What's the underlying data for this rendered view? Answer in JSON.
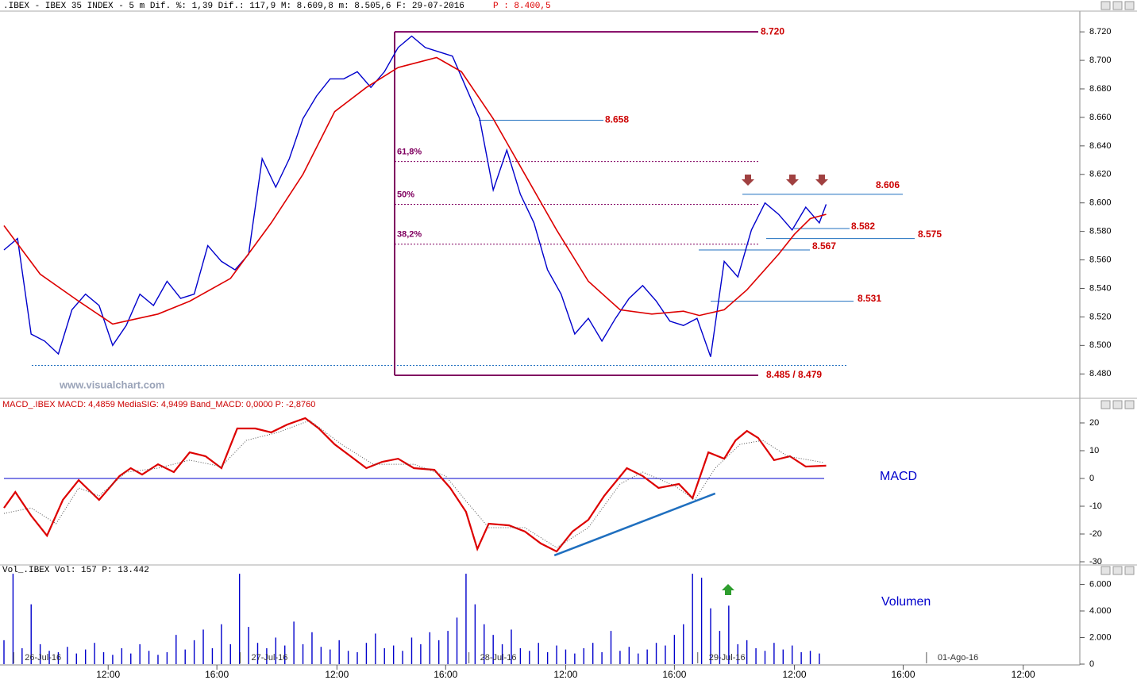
{
  "chart_data": [
    {
      "type": "line",
      "header": ".IBEX - IBEX 35 INDEX -  5 m Dif. %: 1,39 Dif.: 117,9 M: 8.609,8 m: 8.505,6 F: 29-07-2016",
      "header_last": "P : 8.400,5",
      "watermark": "www.visualchart.com",
      "xlim": [
        0,
        475
      ],
      "ylim": [
        8.464,
        8.734
      ],
      "yticks": [
        {
          "value": 8.48,
          "label": "8.480"
        },
        {
          "value": 8.5,
          "label": "8.500"
        },
        {
          "value": 8.52,
          "label": "8.520"
        },
        {
          "value": 8.54,
          "label": "8.540"
        },
        {
          "value": 8.56,
          "label": "8.560"
        },
        {
          "value": 8.58,
          "label": "8.580"
        },
        {
          "value": 8.6,
          "label": "8.600"
        },
        {
          "value": 8.62,
          "label": "8.620"
        },
        {
          "value": 8.64,
          "label": "8.640"
        },
        {
          "value": 8.66,
          "label": "8.660"
        },
        {
          "value": 8.68,
          "label": "8.680"
        },
        {
          "value": 8.7,
          "label": "8.700"
        },
        {
          "value": 8.72,
          "label": "8.720"
        }
      ],
      "series": [
        {
          "color": "#0000cc",
          "x": [
            0,
            6,
            12,
            18,
            24,
            30,
            36,
            42,
            48,
            54,
            60,
            66,
            72,
            78,
            84,
            90,
            96,
            102,
            108,
            114,
            120,
            126,
            132,
            138,
            144,
            150,
            156,
            162,
            168,
            174,
            180,
            186,
            192,
            198,
            204,
            210,
            216,
            222,
            228,
            234,
            240,
            246,
            252,
            258,
            264,
            270,
            276,
            282,
            288,
            294,
            300,
            306,
            312,
            318,
            324,
            330,
            336,
            342,
            348,
            354,
            360,
            363
          ],
          "values": [
            8.567,
            8.575,
            8.508,
            8.503,
            8.494,
            8.525,
            8.536,
            8.528,
            8.5,
            8.514,
            8.536,
            8.528,
            8.545,
            8.533,
            8.536,
            8.57,
            8.559,
            8.553,
            8.564,
            8.631,
            8.611,
            8.631,
            8.659,
            8.675,
            8.687,
            8.687,
            8.692,
            8.681,
            8.692,
            8.709,
            8.717,
            8.709,
            8.706,
            8.703,
            8.681,
            8.659,
            8.609,
            8.637,
            8.606,
            8.586,
            8.553,
            8.536,
            8.508,
            8.519,
            8.503,
            8.519,
            8.533,
            8.542,
            8.531,
            8.517,
            8.514,
            8.519,
            8.492,
            8.559,
            8.548,
            8.581,
            8.6,
            8.592,
            8.581,
            8.597,
            8.586,
            8.599
          ]
        },
        {
          "color": "#dd0000",
          "x": [
            0,
            16,
            33,
            48,
            68,
            82,
            100,
            118,
            132,
            146,
            160,
            174,
            191,
            202,
            216,
            230,
            244,
            258,
            272,
            286,
            300,
            307,
            318,
            328,
            342,
            349,
            356,
            363
          ],
          "values": [
            8.584,
            8.55,
            8.531,
            8.515,
            8.522,
            8.531,
            8.547,
            8.586,
            8.62,
            8.664,
            8.681,
            8.695,
            8.702,
            8.692,
            8.659,
            8.62,
            8.581,
            8.545,
            8.525,
            8.522,
            8.524,
            8.521,
            8.525,
            8.539,
            8.564,
            8.578,
            8.589,
            8.592
          ]
        }
      ],
      "levels": [
        {
          "label": "8.720",
          "value": 8.72
        },
        {
          "label": "8.658",
          "value": 8.658
        },
        {
          "label": "8.606",
          "value": 8.606
        },
        {
          "label": "8.582",
          "value": 8.582
        },
        {
          "label": "8.575",
          "value": 8.575
        },
        {
          "label": "8.567",
          "value": 8.567
        },
        {
          "label": "8.531",
          "value": 8.531
        },
        {
          "label": "8.485 / 8.479",
          "value": 8.479
        }
      ],
      "fibonacci": [
        {
          "label": "61,8%",
          "price": 8.629
        },
        {
          "label": "50%",
          "price": 8.599
        },
        {
          "label": "38,2%",
          "price": 8.571
        }
      ],
      "dashed_level": 8.486
    },
    {
      "type": "line",
      "header": "MACD_.IBEX MACD: 4,4859 MediaSIG: 4,9499 Band_MACD: 0,0000 P: -2,8760",
      "label": "MACD",
      "xlim": [
        0,
        475
      ],
      "ylim": [
        -30.5,
        25
      ],
      "yticks": [
        -30,
        -20,
        -10,
        0,
        10,
        20
      ],
      "zero_line": 0,
      "series": [
        {
          "color": "#dd0000",
          "x": [
            0,
            5,
            12,
            19,
            26,
            33,
            42,
            51,
            56,
            61,
            68,
            75,
            82,
            89,
            96,
            103,
            111,
            118,
            125,
            133,
            139,
            146,
            153,
            160,
            167,
            174,
            181,
            190,
            197,
            204,
            209,
            214,
            223,
            230,
            237,
            244,
            251,
            258,
            265,
            275,
            282,
            289,
            298,
            304,
            311,
            318,
            323,
            328,
            333,
            340,
            347,
            354,
            363
          ],
          "values": [
            -10.6,
            -4.9,
            -13.4,
            -20.6,
            -7.7,
            -0.6,
            -7.7,
            0.9,
            3.7,
            1.4,
            5.1,
            2.3,
            9.4,
            8.0,
            3.7,
            18.0,
            18.0,
            16.6,
            19.4,
            21.7,
            18.0,
            12.3,
            8.0,
            3.7,
            6.0,
            7.1,
            3.7,
            3.1,
            -3.4,
            -12.0,
            -25.4,
            -16.3,
            -16.9,
            -19.1,
            -23.4,
            -26.3,
            -19.1,
            -14.9,
            -6.3,
            3.7,
            0.9,
            -3.4,
            -2.0,
            -7.1,
            9.4,
            7.1,
            13.7,
            17.1,
            14.6,
            6.6,
            8.0,
            4.3,
            4.6
          ]
        },
        {
          "color": "#555555",
          "x": [
            0,
            12,
            23,
            33,
            42,
            54,
            68,
            82,
            96,
            107,
            121,
            135,
            149,
            163,
            181,
            195,
            205,
            214,
            230,
            244,
            258,
            272,
            282,
            296,
            305,
            314,
            325,
            335,
            346,
            362
          ],
          "values": [
            -12.6,
            -10.6,
            -16.3,
            -3.4,
            -6.3,
            2.3,
            3.7,
            6.6,
            4.3,
            13.7,
            16.6,
            20.9,
            12.3,
            5.1,
            5.1,
            0.9,
            -9.1,
            -17.7,
            -17.7,
            -24.9,
            -17.7,
            -2.0,
            2.3,
            -2.6,
            -7.7,
            3.7,
            12.3,
            13.7,
            8.0,
            5.7
          ]
        }
      ],
      "trendline": {
        "x": [
          243,
          314
        ],
        "values": [
          -27.7,
          -5.4
        ]
      }
    },
    {
      "type": "bar",
      "header": "Vol_.IBEX Vol: 157 P: 13.442",
      "label": "Volumen",
      "color": "#0000cc",
      "xlim": [
        0,
        475
      ],
      "ylim": [
        0,
        6900
      ],
      "yticks": [
        0,
        {
          "value": 2000,
          "label": "2.000"
        },
        {
          "value": 4000,
          "label": "4.000"
        },
        {
          "value": 6000,
          "label": "6.000"
        }
      ],
      "x": [
        0,
        4,
        8,
        12,
        16,
        20,
        24,
        28,
        32,
        36,
        40,
        44,
        48,
        52,
        56,
        60,
        64,
        68,
        72,
        76,
        80,
        84,
        88,
        92,
        96,
        100,
        104,
        108,
        112,
        116,
        120,
        124,
        128,
        132,
        136,
        140,
        144,
        148,
        152,
        156,
        160,
        164,
        168,
        172,
        176,
        180,
        184,
        188,
        192,
        196,
        200,
        204,
        208,
        212,
        216,
        220,
        224,
        228,
        232,
        236,
        240,
        244,
        248,
        252,
        256,
        260,
        264,
        268,
        272,
        276,
        280,
        284,
        288,
        292,
        296,
        300,
        304,
        308,
        312,
        316,
        320,
        324,
        328,
        332,
        336,
        340,
        344,
        348,
        352,
        356,
        360
      ],
      "values": [
        1800,
        6800,
        1200,
        4500,
        1500,
        1000,
        900,
        1300,
        800,
        1100,
        1600,
        900,
        700,
        1200,
        800,
        1500,
        1000,
        700,
        900,
        2200,
        1100,
        1800,
        2600,
        1200,
        3000,
        1500,
        6800,
        2800,
        1600,
        1200,
        2000,
        1400,
        3200,
        1500,
        2400,
        1300,
        1100,
        1800,
        1000,
        900,
        1600,
        2300,
        1200,
        1400,
        1000,
        2000,
        1500,
        2400,
        1800,
        2500,
        3500,
        6800,
        4500,
        3000,
        2200,
        1500,
        2600,
        1200,
        1000,
        1600,
        900,
        1400,
        1100,
        800,
        1200,
        1600,
        900,
        2500,
        1000,
        1300,
        800,
        1100,
        1600,
        1400,
        2200,
        3000,
        6800,
        6500,
        4200,
        2500,
        4400,
        1500,
        1800,
        1200,
        1000,
        1600,
        1100,
        1400,
        900,
        1000,
        800
      ],
      "xticks": [
        {
          "value": 46,
          "label": "12:00"
        },
        {
          "value": 94,
          "label": "16:00"
        },
        {
          "value": 147,
          "label": "12:00"
        },
        {
          "value": 195,
          "label": "16:00"
        },
        {
          "value": 248,
          "label": "12:00"
        },
        {
          "value": 296,
          "label": "16:00"
        },
        {
          "value": 349,
          "label": "12:00"
        },
        {
          "value": 397,
          "label": "16:00"
        },
        {
          "value": 450,
          "label": "12:00"
        }
      ],
      "date_labels": [
        {
          "value": 5,
          "label": "26-Jul-16"
        },
        {
          "value": 105,
          "label": "27-Jul-16"
        },
        {
          "value": 206,
          "label": "28-Jul-16"
        },
        {
          "value": 307,
          "label": "29-Jul-16"
        },
        {
          "value": 408,
          "label": "01-Ago-16"
        }
      ]
    }
  ]
}
